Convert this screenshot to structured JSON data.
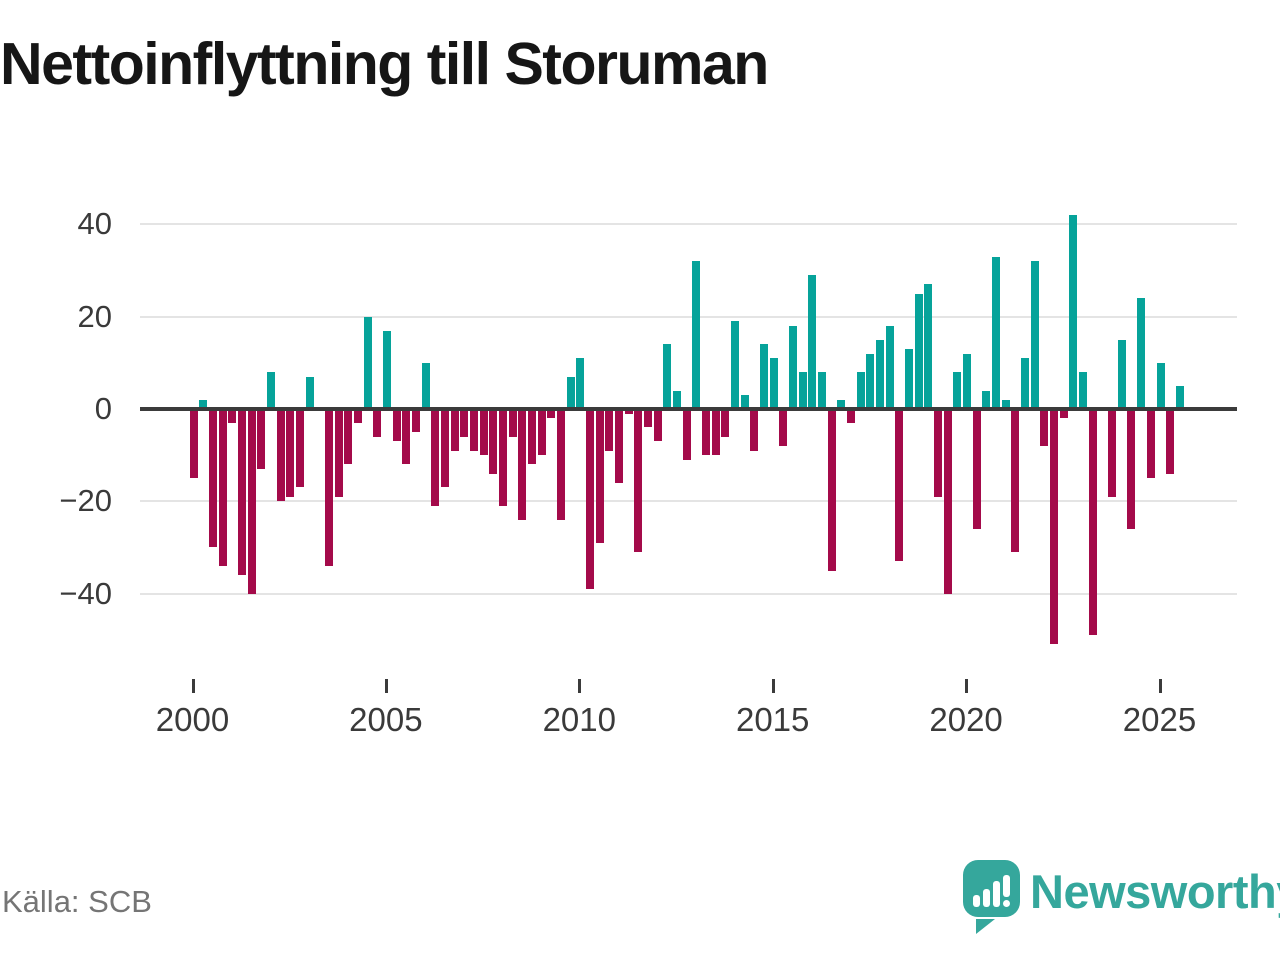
{
  "title": "Nettoinflyttning till Storuman",
  "footer": {
    "source": "Källa: SCB"
  },
  "brand": {
    "name": "Newsworthy",
    "logo_icon": "speech-bubble-bar-chart-icon"
  },
  "chart_data": {
    "type": "bar",
    "title": "Nettoinflyttning till Storuman",
    "x_interval": "quarter",
    "categories": [
      "2000Q1",
      "2000Q2",
      "2000Q3",
      "2000Q4",
      "2001Q1",
      "2001Q2",
      "2001Q3",
      "2001Q4",
      "2002Q1",
      "2002Q2",
      "2002Q3",
      "2002Q4",
      "2003Q1",
      "2003Q2",
      "2003Q3",
      "2003Q4",
      "2004Q1",
      "2004Q2",
      "2004Q3",
      "2004Q4",
      "2005Q1",
      "2005Q2",
      "2005Q3",
      "2005Q4",
      "2006Q1",
      "2006Q2",
      "2006Q3",
      "2006Q4",
      "2007Q1",
      "2007Q2",
      "2007Q3",
      "2007Q4",
      "2008Q1",
      "2008Q2",
      "2008Q3",
      "2008Q4",
      "2009Q1",
      "2009Q2",
      "2009Q3",
      "2009Q4",
      "2010Q1",
      "2010Q2",
      "2010Q3",
      "2010Q4",
      "2011Q1",
      "2011Q2",
      "2011Q3",
      "2011Q4",
      "2012Q1",
      "2012Q2",
      "2012Q3",
      "2012Q4",
      "2013Q1",
      "2013Q2",
      "2013Q3",
      "2013Q4",
      "2014Q1",
      "2014Q2",
      "2014Q3",
      "2014Q4",
      "2015Q1",
      "2015Q2",
      "2015Q3",
      "2015Q4",
      "2016Q1",
      "2016Q2",
      "2016Q3",
      "2016Q4",
      "2017Q1",
      "2017Q2",
      "2017Q3",
      "2017Q4",
      "2018Q1",
      "2018Q2",
      "2018Q3",
      "2018Q4",
      "2019Q1",
      "2019Q2",
      "2019Q3",
      "2019Q4",
      "2020Q1",
      "2020Q2",
      "2020Q3",
      "2020Q4",
      "2021Q1",
      "2021Q2",
      "2021Q3",
      "2021Q4",
      "2022Q1",
      "2022Q2",
      "2022Q3",
      "2022Q4",
      "2023Q1",
      "2023Q2",
      "2023Q3",
      "2023Q4",
      "2024Q1",
      "2024Q2",
      "2024Q3",
      "2024Q4",
      "2025Q1",
      "2025Q2",
      "2025Q3"
    ],
    "values": [
      -15,
      2,
      -30,
      -34,
      -3,
      -36,
      -40,
      -13,
      8,
      -20,
      -19,
      -17,
      7,
      0,
      -34,
      -19,
      -12,
      -3,
      20,
      -6,
      17,
      -7,
      -12,
      -5,
      10,
      -21,
      -17,
      -9,
      -6,
      -9,
      -10,
      -14,
      -21,
      -6,
      -24,
      -12,
      -10,
      -2,
      -24,
      7,
      11,
      -39,
      -29,
      -9,
      -16,
      -1,
      -31,
      -4,
      -7,
      14,
      4,
      -11,
      32,
      -10,
      -10,
      -6,
      19,
      3,
      -9,
      14,
      11,
      -8,
      18,
      8,
      29,
      8,
      -35,
      2,
      -3,
      8,
      12,
      15,
      18,
      -33,
      13,
      25,
      27,
      -19,
      -40,
      8,
      12,
      -26,
      4,
      33,
      2,
      -31,
      11,
      32,
      -8,
      -51,
      -2,
      42,
      8,
      -49,
      0,
      -19,
      15,
      -26,
      24,
      -15,
      10,
      -14,
      5
    ],
    "y_ticks": [
      40,
      20,
      0,
      -20,
      -40
    ],
    "x_tick_years": [
      "2000",
      "2005",
      "2010",
      "2015",
      "2020",
      "2025"
    ],
    "ylim": [
      -55,
      46
    ],
    "grid": true,
    "legend": "none",
    "colors": {
      "positive": "#06a39a",
      "negative": "#a40a4a",
      "axis": "#3b3b3b",
      "grid": "#e4e4e4",
      "tick_label": "#3a3a3a",
      "source_text": "#757575",
      "logo": "#35a79c"
    }
  }
}
